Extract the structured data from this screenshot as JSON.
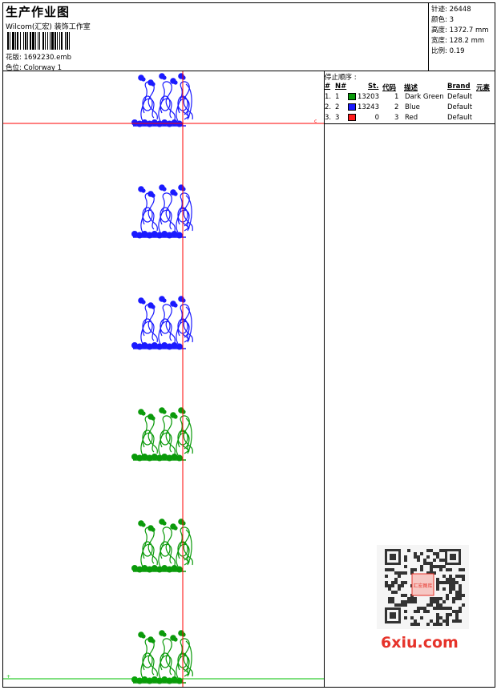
{
  "header": {
    "title": "生产作业图",
    "company": "Wilcom(汇宏) 装饰工作室",
    "design_label": "花版:",
    "design_file": "1692230.emb",
    "colorway_label": "色位:",
    "colorway": "Colorway 1"
  },
  "stats": {
    "stitches_label": "针迹:",
    "stitches": "26448",
    "colors_label": "颜色:",
    "colors": "3",
    "height_label": "高度:",
    "height": "1372.7 mm",
    "width_label": "宽度:",
    "width": "128.2 mm",
    "scale_label": "比例:",
    "scale": "0.19"
  },
  "stop_sequence": {
    "title": "停止顺序 :",
    "columns": [
      "#",
      "N#",
      "St.",
      "代码",
      "描述",
      "Brand",
      "元素"
    ],
    "rows": [
      {
        "idx": "1.",
        "n": "1",
        "color": "#0a9a0a",
        "st": "13203",
        "code": "1",
        "desc": "Dark Green",
        "brand": "Default"
      },
      {
        "idx": "2.",
        "n": "2",
        "color": "#1a1aff",
        "st": "13243",
        "code": "2",
        "desc": "Blue",
        "brand": "Default"
      },
      {
        "idx": "3.",
        "n": "3",
        "color": "#ff1a1a",
        "st": "0",
        "code": "3",
        "desc": "Red",
        "brand": "Default"
      }
    ]
  },
  "preview": {
    "motif_colors": [
      "#1a1aff",
      "#1a1aff",
      "#1a1aff",
      "#0a9a0a",
      "#0a9a0a",
      "#0a9a0a"
    ],
    "guide_color": "#ff0000",
    "end_line_color": "#00c000"
  },
  "watermark": {
    "site": "6xiu.com",
    "stamp": "汇宏图库"
  }
}
